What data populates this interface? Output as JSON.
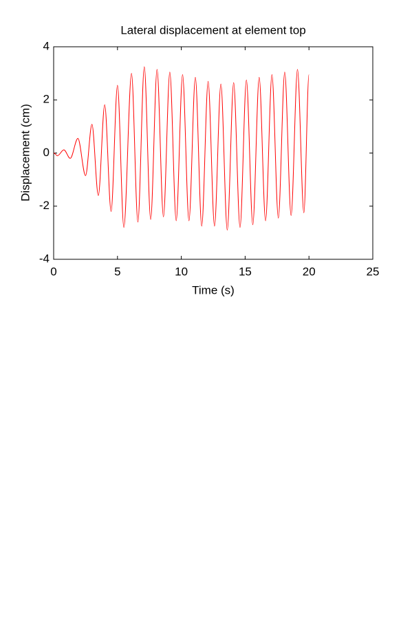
{
  "chart_data": {
    "type": "line",
    "title": "Lateral displacement at element top",
    "xlabel": "Time (s)",
    "ylabel": "Displacement (cm)",
    "xlim": [
      0,
      25
    ],
    "xticks": [
      0,
      5,
      10,
      15,
      20,
      25
    ],
    "ylim": [
      -4,
      4
    ],
    "yticks": [
      -4,
      -2,
      0,
      2,
      4
    ],
    "grid": false,
    "series": [
      {
        "name": "displacement",
        "color": "#ff0000",
        "x": [
          0,
          0.3,
          0.8,
          1.3,
          1.9,
          2.5,
          3.0,
          3.5,
          4.0,
          4.5,
          5.0,
          5.5,
          6.1,
          6.6,
          7.1,
          7.6,
          8.1,
          8.6,
          9.1,
          9.6,
          10.1,
          10.6,
          11.1,
          11.6,
          12.1,
          12.6,
          13.1,
          13.6,
          14.1,
          14.6,
          15.1,
          15.6,
          16.1,
          16.6,
          17.1,
          17.6,
          18.1,
          18.6,
          19.1,
          19.6,
          20.0
        ],
        "values": [
          0,
          -0.1,
          0.12,
          -0.2,
          0.55,
          -0.85,
          1.08,
          -1.6,
          1.82,
          -2.2,
          2.55,
          -2.8,
          3.0,
          -2.6,
          3.25,
          -2.5,
          3.15,
          -2.4,
          3.05,
          -2.55,
          2.95,
          -2.55,
          2.85,
          -2.75,
          2.7,
          -2.75,
          2.6,
          -2.9,
          2.65,
          -2.8,
          2.75,
          -2.7,
          2.85,
          -2.55,
          2.95,
          -2.45,
          3.05,
          -2.35,
          3.15,
          -2.25,
          2.95
        ]
      }
    ]
  }
}
